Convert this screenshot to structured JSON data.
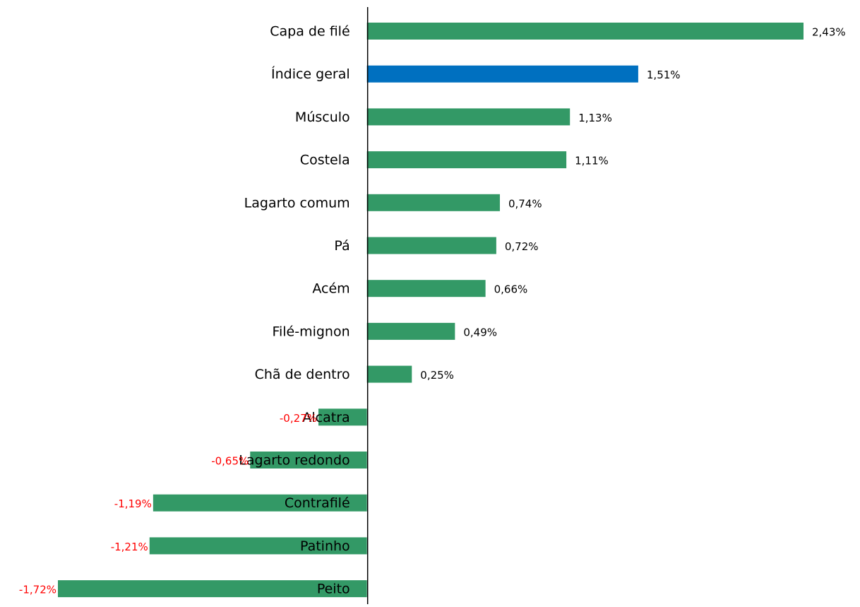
{
  "chart_data": {
    "type": "barh",
    "categories": [
      "Capa de filé",
      "Índice geral",
      "Músculo",
      "Costela",
      "Lagarto comum",
      "Pá",
      "Acém",
      "Filé-mignon",
      "Chã de dentro",
      "Alcatra",
      "Lagarto redondo",
      "Contrafilé",
      "Patinho",
      "Peito"
    ],
    "values": [
      2.43,
      1.51,
      1.13,
      1.11,
      0.74,
      0.72,
      0.66,
      0.49,
      0.25,
      -0.27,
      -0.65,
      -1.19,
      -1.21,
      -1.72
    ],
    "value_labels": [
      "2,43%",
      "1,51%",
      "1,13%",
      "1,11%",
      "0,74%",
      "0,72%",
      "0,66%",
      "0,49%",
      "0,25%",
      "-0,27%",
      "-0,65%",
      "-1,19%",
      "-1,21%",
      "-1,72%"
    ],
    "colors": [
      "#339966",
      "#0070c0",
      "#339966",
      "#339966",
      "#339966",
      "#339966",
      "#339966",
      "#339966",
      "#339966",
      "#339966",
      "#339966",
      "#339966",
      "#339966",
      "#339966"
    ],
    "label_color": "#000000",
    "negative_label_color": "#ff0000"
  }
}
